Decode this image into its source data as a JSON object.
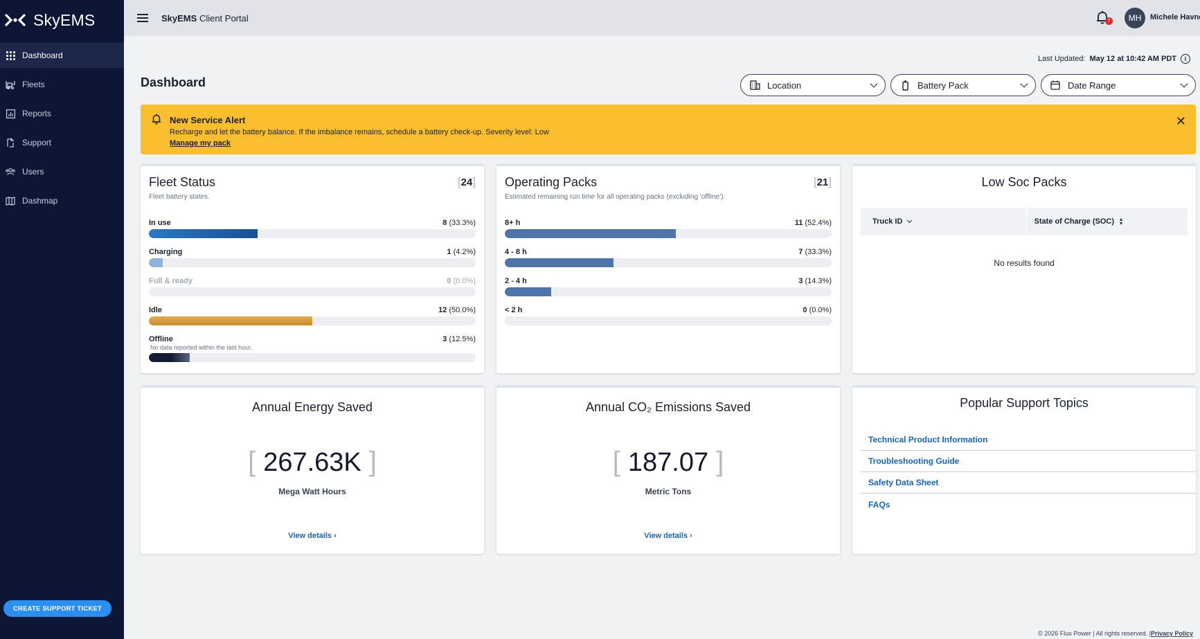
{
  "brand": {
    "name": "SkyEMS"
  },
  "sidebar": {
    "items": [
      {
        "label": "Dashboard",
        "icon": "grid-icon",
        "active": true
      },
      {
        "label": "Fleets",
        "icon": "forklift-icon"
      },
      {
        "label": "Reports",
        "icon": "chart-icon"
      },
      {
        "label": "Support",
        "icon": "support-icon"
      },
      {
        "label": "Users",
        "icon": "users-icon"
      },
      {
        "label": "Dashmap",
        "icon": "map-icon"
      }
    ],
    "support_button": "CREATE SUPPORT TICKET"
  },
  "topbar": {
    "portal_brand": "SkyEMS",
    "portal_rest": "Client Portal",
    "notification_count": "7",
    "avatar_initials": "MH",
    "username": "Michele Havne"
  },
  "header": {
    "last_updated_label": "Last Updated:",
    "last_updated_value": "May 12 at 10:42 AM PDT",
    "page_title": "Dashboard"
  },
  "filters": {
    "location": "Location",
    "battery_pack": "Battery Pack",
    "date_range": "Date Range"
  },
  "alert": {
    "title": "New Service Alert",
    "text": "Recharge and let the battery balance. If the imbalance remains, schedule a battery check-up. Severity level: Low",
    "link": "Manage my pack",
    "bg_color": "#fbbe2e"
  },
  "fleet_status": {
    "title": "Fleet Status",
    "subtitle": "Fleet battery states.",
    "total": "24",
    "rows": [
      {
        "label": "In use",
        "count": "8",
        "pct_text": "(33.3%)",
        "fraction": 0.333,
        "color": "#1a5fa6"
      },
      {
        "label": "Charging",
        "count": "1",
        "pct_text": "(4.2%)",
        "fraction": 0.042,
        "color": "#8fb3d9"
      },
      {
        "label": "Full & ready",
        "count": "0",
        "pct_text": "(0.0%)",
        "fraction": 0,
        "color": "#cccccc"
      },
      {
        "label": "Idle",
        "count": "12",
        "pct_text": "(50.0%)",
        "fraction": 0.5,
        "color": "#d79a3c"
      },
      {
        "label": "Offline",
        "count": "3",
        "pct_text": "(12.5%)",
        "fraction": 0.125,
        "color": "#1a2240",
        "note": "No data reported within the last hour."
      }
    ]
  },
  "operating_packs": {
    "title": "Operating Packs",
    "subtitle": "Estimated remaining run time for all operating packs (excluding 'offline').",
    "total": "21",
    "rows": [
      {
        "label": "8+ h",
        "count": "11",
        "pct_text": "(52.4%)",
        "fraction": 0.524,
        "color": "#4e74a8"
      },
      {
        "label": "4 - 8 h",
        "count": "7",
        "pct_text": "(33.3%)",
        "fraction": 0.333,
        "color": "#4e74a8"
      },
      {
        "label": "2 - 4 h",
        "count": "3",
        "pct_text": "(14.3%)",
        "fraction": 0.143,
        "color": "#4e74a8"
      },
      {
        "label": "< 2 h",
        "count": "0",
        "pct_text": "(0.0%)",
        "fraction": 0,
        "color": "#4e74a8"
      }
    ]
  },
  "low_soc": {
    "title": "Low Soc Packs",
    "col1": "Truck ID",
    "col2": "State of Charge (SOC)",
    "empty": "No results found"
  },
  "energy": {
    "title": "Annual Energy Saved",
    "value": "267.63K",
    "unit": "Mega Watt Hours",
    "link": "View details"
  },
  "co2": {
    "title": "Annual CO₂ Emissions Saved",
    "value": "187.07",
    "unit": "Metric Tons",
    "link": "View details"
  },
  "support_topics": {
    "title": "Popular Support Topics",
    "items": [
      "Technical Product Information",
      "Troubleshooting Guide",
      "Safety Data Sheet",
      "FAQs"
    ]
  },
  "footer": {
    "copyright": "© 2026 Flux Power | All rights reserved. |",
    "privacy": "Privacy Policy"
  }
}
